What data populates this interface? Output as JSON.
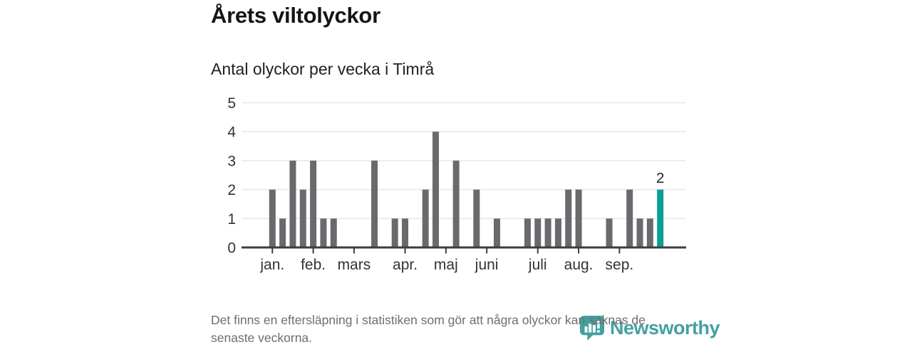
{
  "chart_data": {
    "type": "bar",
    "title": "Årets viltolyckor",
    "subtitle": "Antal olyckor per vecka i Timrå",
    "x_unit": "vecka",
    "first_week": 1,
    "values": [
      2,
      1,
      3,
      2,
      3,
      1,
      1,
      0,
      0,
      0,
      3,
      0,
      1,
      1,
      0,
      2,
      4,
      0,
      3,
      0,
      2,
      0,
      1,
      0,
      0,
      1,
      1,
      1,
      1,
      2,
      2,
      0,
      0,
      1,
      0,
      2,
      1,
      1,
      2
    ],
    "ylim": [
      0,
      5
    ],
    "yticks": [
      0,
      1,
      2,
      3,
      4,
      5
    ],
    "grid": true,
    "legend": "none",
    "month_ticks": [
      {
        "label": "jan.",
        "week": 1
      },
      {
        "label": "feb.",
        "week": 5
      },
      {
        "label": "mars",
        "week": 9
      },
      {
        "label": "apr.",
        "week": 14
      },
      {
        "label": "maj",
        "week": 18
      },
      {
        "label": "juni",
        "week": 22
      },
      {
        "label": "juli",
        "week": 27
      },
      {
        "label": "aug.",
        "week": 31
      },
      {
        "label": "sep.",
        "week": 35
      }
    ],
    "highlight_last": true,
    "last_value_label": "2"
  },
  "colors": {
    "bar": "#69696e",
    "highlight": "#0a9e94",
    "grid": "#e8e8e8",
    "axis": "#3d3d3d",
    "tick_label": "#333333",
    "value_label": "#1f1f1f",
    "brand": "#44a1a0"
  },
  "footer": {
    "note_lines": [
      "Det finns en eftersläpning i statistiken som gör att några olyckor kan saknas de",
      "senaste veckorna."
    ]
  },
  "branding": {
    "logo_text": "Newsworthy"
  }
}
